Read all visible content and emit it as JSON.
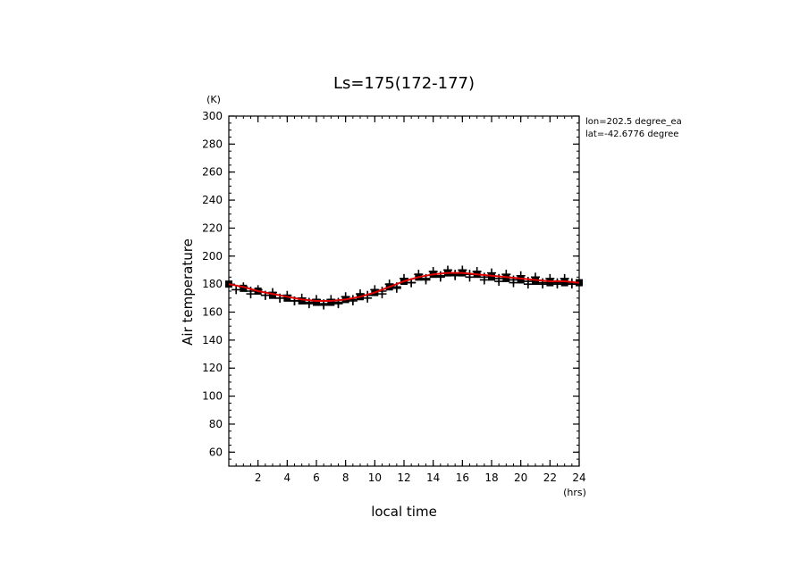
{
  "chart_data": {
    "type": "line",
    "title": "Ls=175(172-177)",
    "xlabel": "local time",
    "xunit": "(hrs)",
    "ylabel": "Air temperature",
    "yunit": "(K)",
    "xlim": [
      0,
      24
    ],
    "ylim": [
      50,
      300
    ],
    "xticks": [
      2,
      4,
      6,
      8,
      10,
      12,
      14,
      16,
      18,
      20,
      22,
      24
    ],
    "yticks": [
      60,
      80,
      100,
      120,
      140,
      160,
      180,
      200,
      220,
      240,
      260,
      280,
      300
    ],
    "annotations": [
      "lon=202.5 degree_ea",
      "lat=-42.6776 degree"
    ],
    "grid": false,
    "series": [
      {
        "kind": "line",
        "color": "#e00000",
        "x": [
          0,
          1,
          2,
          3,
          4,
          5,
          6,
          7,
          8,
          9,
          10,
          11,
          12,
          13,
          14,
          15,
          16,
          17,
          18,
          19,
          20,
          21,
          22,
          23,
          24
        ],
        "y": [
          180,
          178,
          175,
          173,
          171,
          169,
          168,
          168,
          169,
          171,
          174,
          178,
          182,
          185,
          187,
          188,
          188,
          187,
          186,
          185,
          184,
          183,
          182,
          182,
          181
        ]
      },
      {
        "kind": "square-markers",
        "color": "#000000",
        "x": [
          0,
          1,
          2,
          3,
          4,
          5,
          6,
          7,
          8,
          9,
          10,
          11,
          12,
          13,
          14,
          15,
          16,
          17,
          18,
          19,
          20,
          21,
          22,
          23,
          24
        ],
        "y": [
          180,
          177,
          175,
          172,
          170,
          168,
          167,
          167,
          169,
          171,
          174,
          178,
          182,
          185,
          187,
          188,
          188,
          187,
          185,
          184,
          183,
          182,
          181,
          181,
          181
        ]
      },
      {
        "kind": "plus-markers",
        "color": "#000000",
        "x": [
          0.5,
          1.5,
          2.5,
          3.5,
          4.5,
          5.5,
          6.5,
          7.5,
          8.5,
          9.5,
          10.5,
          11.5,
          12.5,
          13.5,
          14.5,
          15.5,
          16.5,
          17.5,
          18.5,
          19.5,
          20.5,
          21.5,
          22.5,
          23.5
        ],
        "y": [
          176,
          173,
          172,
          170,
          168,
          166,
          165,
          166,
          168,
          170,
          173,
          177,
          181,
          184,
          186,
          187,
          187,
          185,
          184,
          183,
          182,
          181,
          181,
          181
        ]
      },
      {
        "kind": "plus-markers",
        "color": "#000000",
        "x": [
          1,
          2,
          3,
          4,
          5,
          6,
          7,
          8,
          9,
          10,
          11,
          12,
          13,
          14,
          15,
          16,
          17,
          18,
          19,
          20,
          21,
          22,
          23
        ],
        "y": [
          178,
          176,
          174,
          172,
          170,
          169,
          169,
          171,
          173,
          176,
          180,
          184,
          187,
          189,
          190,
          190,
          189,
          188,
          187,
          186,
          185,
          184,
          184
        ]
      },
      {
        "kind": "plus-markers",
        "color": "#000000",
        "x": [
          1.5,
          2.5,
          3.5,
          4.5,
          5.5,
          6.5,
          7.5,
          8.5,
          9.5,
          10.5,
          11.5,
          12.5,
          13.5,
          14.5,
          15.5,
          16.5,
          17.5,
          18.5,
          19.5,
          20.5,
          21.5,
          22.5,
          23.5
        ],
        "y": [
          175,
          172,
          170,
          168,
          167,
          166,
          167,
          169,
          172,
          175,
          178,
          181,
          183,
          185,
          186,
          185,
          183,
          182,
          181,
          180,
          180,
          180,
          180
        ]
      }
    ]
  }
}
